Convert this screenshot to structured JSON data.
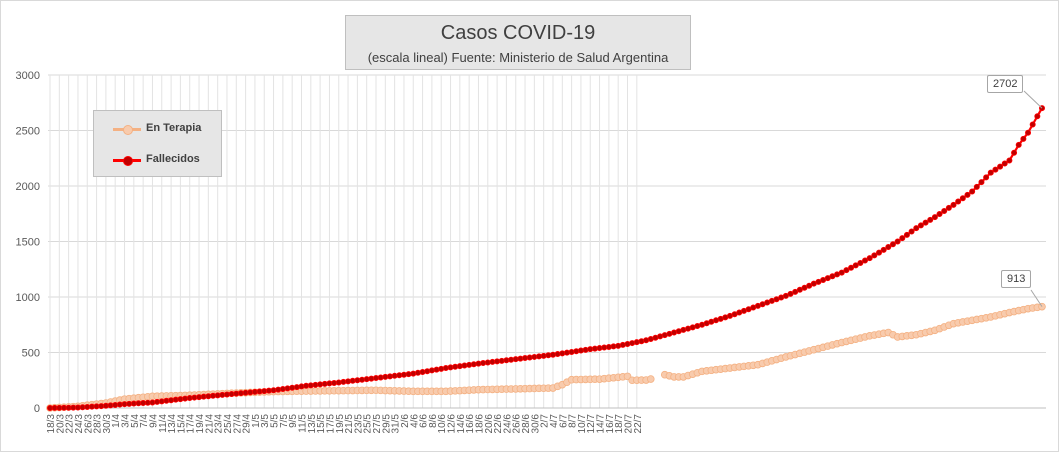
{
  "chart_data": {
    "type": "line",
    "title": "Casos COVID-19",
    "subtitle": "(escala lineal) Fuente: Ministerio de Salud Argentina",
    "ylim": [
      0,
      3000
    ],
    "yticks": [
      0,
      500,
      1000,
      1500,
      2000,
      2500,
      3000
    ],
    "x_tick_labels": [
      "18/3",
      "20/3",
      "22/3",
      "24/3",
      "26/3",
      "28/3",
      "30/3",
      "1/4",
      "3/4",
      "5/4",
      "7/4",
      "9/4",
      "11/4",
      "13/4",
      "15/4",
      "17/4",
      "19/4",
      "21/4",
      "23/4",
      "25/4",
      "27/4",
      "29/4",
      "1/5",
      "3/5",
      "5/5",
      "7/5",
      "9/5",
      "11/5",
      "13/5",
      "15/5",
      "17/5",
      "19/5",
      "21/5",
      "23/5",
      "25/5",
      "27/5",
      "29/5",
      "31/5",
      "2/6",
      "4/6",
      "6/6",
      "8/6",
      "10/6",
      "12/6",
      "14/6",
      "16/6",
      "18/6",
      "20/6",
      "22/6",
      "24/6",
      "26/6",
      "28/6",
      "30/6",
      "2/7",
      "4/7",
      "6/7",
      "8/7",
      "10/7",
      "12/7",
      "14/7",
      "16/7",
      "18/7",
      "20/7",
      "22/7"
    ],
    "start_date": "18/3",
    "legend_position": "top-left",
    "grid": true,
    "series": [
      {
        "name": "En Terapia",
        "color": "#f4b183",
        "gaps": [
          [
            130,
            131
          ]
        ],
        "anchors": [
          [
            0,
            0
          ],
          [
            6,
            15
          ],
          [
            12,
            45
          ],
          [
            16,
            80
          ],
          [
            22,
            105
          ],
          [
            30,
            115
          ],
          [
            40,
            135
          ],
          [
            48,
            148
          ],
          [
            60,
            155
          ],
          [
            70,
            160
          ],
          [
            78,
            150
          ],
          [
            85,
            150
          ],
          [
            92,
            165
          ],
          [
            100,
            172
          ],
          [
            108,
            180
          ],
          [
            110,
            210
          ],
          [
            112,
            255
          ],
          [
            118,
            260
          ],
          [
            124,
            285
          ],
          [
            125,
            250
          ],
          [
            128,
            252
          ],
          [
            130,
            270
          ],
          [
            131,
            310
          ],
          [
            134,
            280
          ],
          [
            136,
            280
          ],
          [
            140,
            330
          ],
          [
            146,
            360
          ],
          [
            152,
            390
          ],
          [
            158,
            460
          ],
          [
            164,
            525
          ],
          [
            170,
            590
          ],
          [
            176,
            650
          ],
          [
            180,
            680
          ],
          [
            182,
            640
          ],
          [
            186,
            660
          ],
          [
            190,
            700
          ],
          [
            194,
            760
          ],
          [
            198,
            790
          ],
          [
            202,
            820
          ],
          [
            206,
            860
          ],
          [
            210,
            895
          ],
          [
            213,
            913
          ]
        ]
      },
      {
        "name": "Fallecidos",
        "color": "#ff0000",
        "anchors": [
          [
            0,
            0
          ],
          [
            6,
            4
          ],
          [
            12,
            20
          ],
          [
            16,
            35
          ],
          [
            22,
            50
          ],
          [
            30,
            90
          ],
          [
            40,
            130
          ],
          [
            48,
            160
          ],
          [
            55,
            200
          ],
          [
            62,
            230
          ],
          [
            70,
            270
          ],
          [
            78,
            310
          ],
          [
            85,
            360
          ],
          [
            92,
            400
          ],
          [
            100,
            440
          ],
          [
            108,
            480
          ],
          [
            116,
            530
          ],
          [
            122,
            560
          ],
          [
            128,
            610
          ],
          [
            134,
            680
          ],
          [
            140,
            750
          ],
          [
            146,
            830
          ],
          [
            152,
            920
          ],
          [
            158,
            1010
          ],
          [
            164,
            1120
          ],
          [
            170,
            1220
          ],
          [
            176,
            1350
          ],
          [
            182,
            1500
          ],
          [
            186,
            1620
          ],
          [
            190,
            1720
          ],
          [
            194,
            1830
          ],
          [
            198,
            1950
          ],
          [
            202,
            2120
          ],
          [
            206,
            2230
          ],
          [
            208,
            2370
          ],
          [
            210,
            2480
          ],
          [
            213,
            2702
          ]
        ]
      }
    ],
    "annotations": [
      {
        "series": "Fallecidos",
        "text": "2702"
      },
      {
        "series": "En Terapia",
        "text": "913"
      }
    ]
  }
}
